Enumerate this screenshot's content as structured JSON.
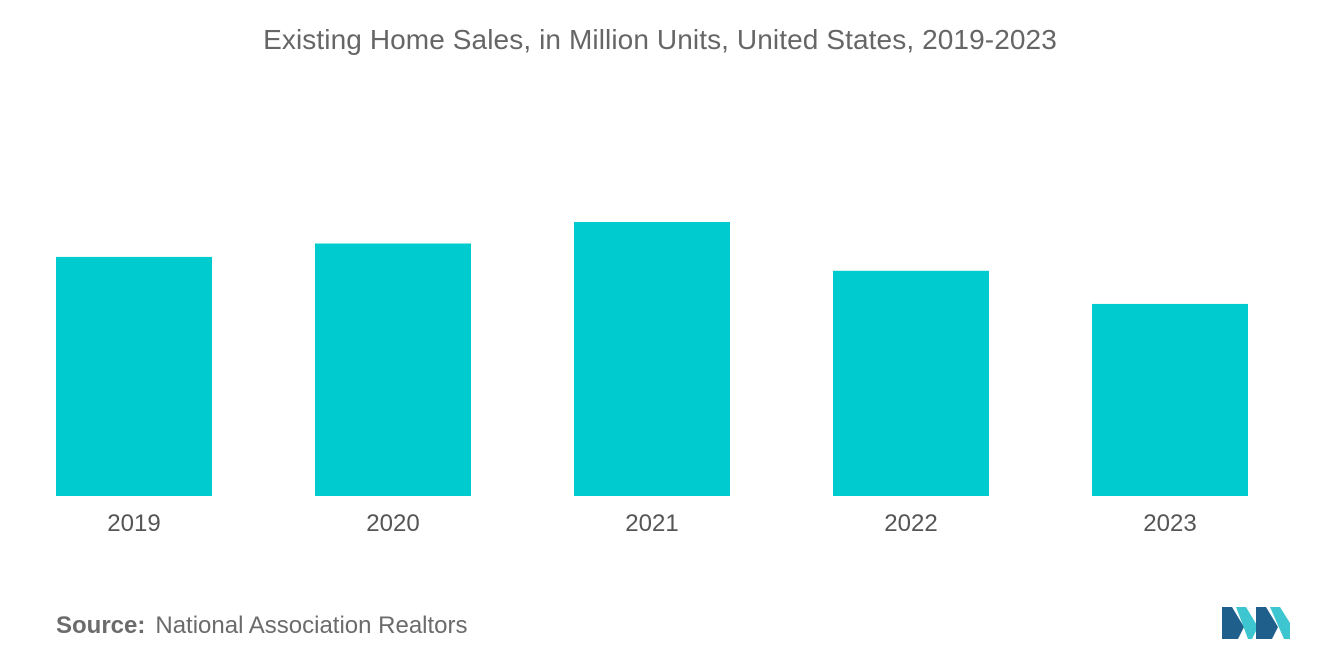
{
  "chart_data": {
    "type": "bar",
    "title": "Existing Home Sales, in Million Units, United States, 2019-2023",
    "categories": [
      "2019",
      "2020",
      "2021",
      "2022",
      "2023"
    ],
    "values": [
      5.34,
      5.64,
      6.12,
      5.03,
      4.29
    ],
    "xlabel": "",
    "ylabel": "",
    "ylim": [
      0,
      6.12
    ],
    "grid": false,
    "legend": "none",
    "bar_color": "#00cccf"
  },
  "source": {
    "label": "Source:",
    "text": "National Association Realtors"
  },
  "logo": {
    "icon": "mordor-intelligence-logo-icon",
    "colors": [
      "#1f5f8b",
      "#3ec6d0"
    ]
  }
}
